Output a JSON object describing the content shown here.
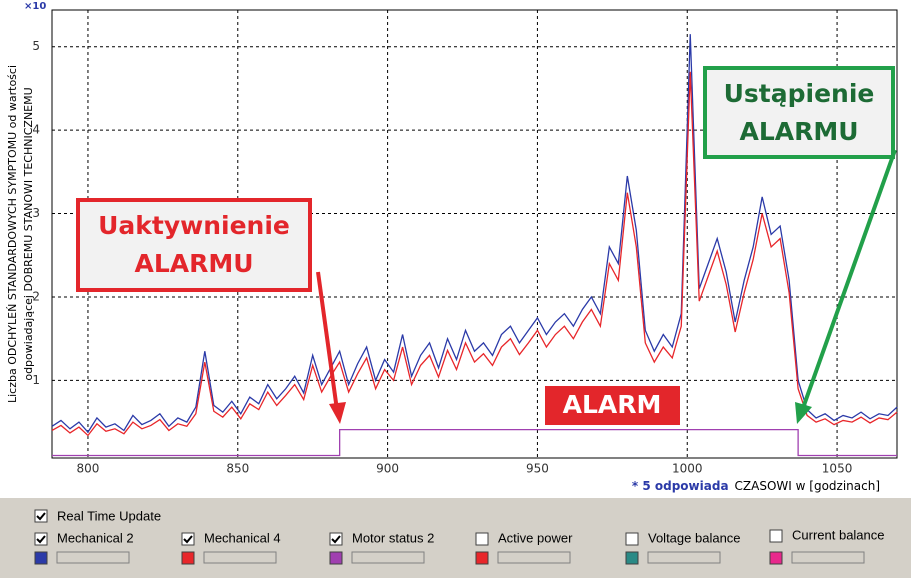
{
  "chart_data": {
    "type": "line",
    "y_multiplier": "×10",
    "y_label": [
      "Liczba ODCHYLEŃ STANDARDOWYCH SYMPTOMU  od wartości",
      "odpowiadającej DOBREMU STANOWI TECHNICZNEMU"
    ],
    "x_note": [
      "* 5  odpowiada",
      "CZASOWI  w [godzinach]"
    ],
    "annotations": {
      "activation": [
        "Uaktywnienie",
        "ALARMU"
      ],
      "clearance": [
        "Ustąpienie",
        "ALARMU"
      ],
      "alarm": "ALARM"
    },
    "xlim": [
      788,
      1070
    ],
    "ylim": [
      0.07,
      5.44
    ],
    "xticks": [
      800,
      850,
      900,
      950,
      1000,
      1050
    ],
    "yticks": [
      1,
      2,
      3,
      4,
      5
    ],
    "grid": true,
    "x": [
      788,
      791,
      794,
      797,
      800,
      803,
      806,
      809,
      812,
      815,
      818,
      821,
      824,
      827,
      830,
      833,
      836,
      839,
      842,
      845,
      848,
      851,
      854,
      857,
      860,
      863,
      866,
      869,
      872,
      875,
      878,
      881,
      884,
      887,
      890,
      893,
      896,
      899,
      902,
      905,
      908,
      911,
      914,
      917,
      920,
      923,
      926,
      929,
      932,
      935,
      938,
      941,
      944,
      947,
      950,
      953,
      956,
      959,
      962,
      965,
      968,
      971,
      974,
      977,
      980,
      983,
      986,
      989,
      992,
      995,
      998,
      1001,
      1004,
      1007,
      1010,
      1013,
      1016,
      1019,
      1022,
      1025,
      1028,
      1031,
      1034,
      1037,
      1040,
      1043,
      1046,
      1049,
      1052,
      1055,
      1058,
      1061,
      1064,
      1067,
      1070
    ],
    "series": [
      {
        "color": "#2b3aa8",
        "values": [
          0.45,
          0.52,
          0.42,
          0.5,
          0.38,
          0.55,
          0.44,
          0.48,
          0.4,
          0.58,
          0.47,
          0.52,
          0.6,
          0.45,
          0.55,
          0.5,
          0.68,
          1.35,
          0.7,
          0.62,
          0.75,
          0.6,
          0.8,
          0.72,
          0.95,
          0.78,
          0.9,
          1.05,
          0.85,
          1.3,
          0.95,
          1.15,
          1.35,
          0.95,
          1.2,
          1.4,
          1.0,
          1.25,
          1.1,
          1.55,
          1.05,
          1.3,
          1.45,
          1.15,
          1.5,
          1.25,
          1.6,
          1.35,
          1.45,
          1.3,
          1.55,
          1.65,
          1.45,
          1.6,
          1.75,
          1.55,
          1.7,
          1.8,
          1.65,
          1.85,
          2.0,
          1.8,
          2.6,
          2.4,
          3.45,
          2.8,
          1.6,
          1.35,
          1.55,
          1.4,
          1.8,
          5.15,
          2.1,
          2.4,
          2.7,
          2.3,
          1.7,
          2.2,
          2.6,
          3.2,
          2.75,
          2.85,
          2.2,
          1.0,
          0.65,
          0.55,
          0.6,
          0.52,
          0.58,
          0.55,
          0.62,
          0.54,
          0.6,
          0.58,
          0.68
        ]
      },
      {
        "color": "#e8262a",
        "values": [
          0.4,
          0.46,
          0.37,
          0.44,
          0.34,
          0.48,
          0.39,
          0.42,
          0.36,
          0.5,
          0.42,
          0.46,
          0.53,
          0.4,
          0.48,
          0.45,
          0.6,
          1.22,
          0.63,
          0.56,
          0.68,
          0.54,
          0.72,
          0.65,
          0.86,
          0.7,
          0.82,
          0.95,
          0.77,
          1.18,
          0.86,
          1.05,
          1.22,
          0.86,
          1.08,
          1.27,
          0.9,
          1.13,
          1.0,
          1.4,
          0.95,
          1.18,
          1.3,
          1.04,
          1.36,
          1.13,
          1.45,
          1.22,
          1.32,
          1.18,
          1.4,
          1.5,
          1.31,
          1.45,
          1.6,
          1.4,
          1.55,
          1.65,
          1.5,
          1.7,
          1.85,
          1.65,
          2.4,
          2.2,
          3.25,
          2.6,
          1.45,
          1.22,
          1.4,
          1.27,
          1.65,
          4.7,
          1.95,
          2.25,
          2.55,
          2.15,
          1.58,
          2.05,
          2.45,
          3.0,
          2.6,
          2.7,
          2.05,
          0.9,
          0.58,
          0.5,
          0.54,
          0.47,
          0.52,
          0.5,
          0.56,
          0.49,
          0.55,
          0.53,
          0.62
        ]
      },
      {
        "color": "#a040b0",
        "step": true,
        "values": [
          0.1,
          0.1,
          0.1,
          0.1,
          0.1,
          0.1,
          0.1,
          0.1,
          0.1,
          0.1,
          0.1,
          0.1,
          0.1,
          0.1,
          0.1,
          0.1,
          0.1,
          0.1,
          0.1,
          0.1,
          0.1,
          0.1,
          0.1,
          0.1,
          0.1,
          0.1,
          0.1,
          0.1,
          0.1,
          0.1,
          0.1,
          0.1,
          0.41,
          0.41,
          0.41,
          0.41,
          0.41,
          0.41,
          0.41,
          0.41,
          0.41,
          0.41,
          0.41,
          0.41,
          0.41,
          0.41,
          0.41,
          0.41,
          0.41,
          0.41,
          0.41,
          0.41,
          0.41,
          0.41,
          0.41,
          0.41,
          0.41,
          0.41,
          0.41,
          0.41,
          0.41,
          0.41,
          0.41,
          0.41,
          0.41,
          0.41,
          0.41,
          0.41,
          0.41,
          0.41,
          0.41,
          0.41,
          0.41,
          0.41,
          0.41,
          0.41,
          0.41,
          0.41,
          0.41,
          0.41,
          0.41,
          0.41,
          0.41,
          0.1,
          0.1,
          0.1,
          0.1,
          0.1,
          0.1,
          0.1,
          0.1,
          0.1,
          0.1,
          0.1,
          0.1
        ]
      }
    ]
  },
  "panel": {
    "real_time_update": {
      "label": "Real Time Update",
      "checked": true
    },
    "items": [
      {
        "label": "Mechanical 2",
        "color": "#2b3aa8",
        "checked": true
      },
      {
        "label": "Mechanical 4",
        "color": "#e8262a",
        "checked": true
      },
      {
        "label": "Motor status 2",
        "color": "#a040b0",
        "checked": true
      },
      {
        "label": "Active power",
        "color": "#e8262a",
        "checked": false
      },
      {
        "label": "Voltage balance",
        "color": "#2a8a86",
        "checked": false
      },
      {
        "label": "Current balance",
        "color": "#e8288c",
        "checked": false
      }
    ]
  }
}
